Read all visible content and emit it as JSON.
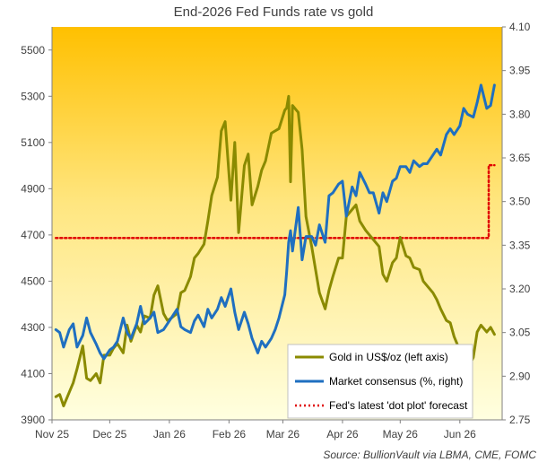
{
  "chart_data": {
    "type": "line",
    "title": "End-2026 Fed Funds rate vs gold",
    "source_prefix": "Source:",
    "source_text": "BullionVault via LBMA, CME, FOMC",
    "x_ticks": [
      "Nov 25",
      "Dec 25",
      "Jan 26",
      "Feb 26",
      "Mar 26",
      "Apr 26",
      "May 26",
      "Jun 26"
    ],
    "left_axis": {
      "ticks": [
        "3900",
        "4100",
        "4300",
        "4500",
        "4700",
        "4900",
        "5100",
        "5300",
        "5500"
      ],
      "ylim": [
        3900,
        5600
      ]
    },
    "right_axis": {
      "ticks": [
        "2.75",
        "2.90",
        "3.05",
        "3.20",
        "3.35",
        "3.50",
        "3.65",
        "3.80",
        "3.95",
        "4.10"
      ],
      "ylim": [
        2.75,
        4.1
      ]
    },
    "grid": false,
    "legend_position": "bottom-right",
    "colors": {
      "gold": "#8a8a00",
      "market": "#1f6fc0",
      "dotplot": "#e00000",
      "bg_top": "#ffc000",
      "bg_bottom": "#ffffe0"
    },
    "series": [
      {
        "name": "Gold in US$/oz (left axis)",
        "axis": "left",
        "x": [
          "2025-11-03",
          "2025-11-05",
          "2025-11-07",
          "2025-11-10",
          "2025-11-12",
          "2025-11-14",
          "2025-11-17",
          "2025-11-19",
          "2025-11-21",
          "2025-11-24",
          "2025-11-26",
          "2025-11-28",
          "2025-12-01",
          "2025-12-03",
          "2025-12-05",
          "2025-12-08",
          "2025-12-10",
          "2025-12-12",
          "2025-12-15",
          "2025-12-17",
          "2025-12-19",
          "2025-12-22",
          "2025-12-24",
          "2025-12-26",
          "2025-12-29",
          "2025-12-31",
          "2026-01-02",
          "2026-01-05",
          "2026-01-07",
          "2026-01-09",
          "2026-01-12",
          "2026-01-14",
          "2026-01-16",
          "2026-01-19",
          "2026-01-21",
          "2026-01-23",
          "2026-01-26",
          "2026-01-28",
          "2026-01-30",
          "2026-02-02",
          "2026-02-04",
          "2026-02-06",
          "2026-02-09",
          "2026-02-11",
          "2026-02-13",
          "2026-02-16",
          "2026-02-18",
          "2026-02-20",
          "2026-02-23",
          "2026-02-25",
          "2026-02-27",
          "2026-03-02",
          "2026-03-03",
          "2026-03-04",
          "2026-03-05",
          "2026-03-06",
          "2026-03-09",
          "2026-03-11",
          "2026-03-13",
          "2026-03-16",
          "2026-03-18",
          "2026-03-20",
          "2026-03-23",
          "2026-03-25",
          "2026-03-27",
          "2026-03-30",
          "2026-04-01",
          "2026-04-03",
          "2026-04-06",
          "2026-04-08",
          "2026-04-10",
          "2026-04-13",
          "2026-04-15",
          "2026-04-17",
          "2026-04-20",
          "2026-04-22",
          "2026-04-24",
          "2026-04-27",
          "2026-04-29",
          "2026-05-01",
          "2026-05-04",
          "2026-05-06",
          "2026-05-08",
          "2026-05-11",
          "2026-05-13",
          "2026-05-15",
          "2026-05-18",
          "2026-05-20",
          "2026-05-22",
          "2026-05-25",
          "2026-05-27",
          "2026-05-29",
          "2026-06-01",
          "2026-06-03",
          "2026-06-05",
          "2026-06-08",
          "2026-06-10",
          "2026-06-12",
          "2026-06-15",
          "2026-06-17",
          "2026-06-19"
        ],
        "values": [
          4000,
          4010,
          3960,
          4020,
          4060,
          4120,
          4220,
          4080,
          4070,
          4100,
          4060,
          4180,
          4180,
          4210,
          4230,
          4190,
          4310,
          4240,
          4310,
          4280,
          4350,
          4340,
          4440,
          4480,
          4360,
          4330,
          4340,
          4360,
          4450,
          4460,
          4520,
          4600,
          4620,
          4660,
          4760,
          4870,
          4950,
          5150,
          5190,
          4850,
          5100,
          4710,
          5000,
          5050,
          4830,
          4910,
          4980,
          5020,
          5140,
          5150,
          5160,
          5240,
          5250,
          5300,
          4930,
          5260,
          5230,
          5070,
          4780,
          4650,
          4550,
          4450,
          4380,
          4460,
          4520,
          4600,
          4600,
          4780,
          4810,
          4830,
          4760,
          4720,
          4700,
          4680,
          4650,
          4530,
          4500,
          4580,
          4600,
          4690,
          4610,
          4600,
          4560,
          4550,
          4500,
          4480,
          4450,
          4420,
          4380,
          4330,
          4320,
          4260,
          4200,
          4060,
          4120,
          4170,
          4280,
          4310,
          4280,
          4300,
          4270
        ]
      },
      {
        "name": "Market consensus (%, right)",
        "axis": "right",
        "x": [
          "2025-11-03",
          "2025-11-05",
          "2025-11-07",
          "2025-11-10",
          "2025-11-12",
          "2025-11-14",
          "2025-11-17",
          "2025-11-19",
          "2025-11-21",
          "2025-11-24",
          "2025-11-26",
          "2025-11-28",
          "2025-12-01",
          "2025-12-03",
          "2025-12-05",
          "2025-12-08",
          "2025-12-10",
          "2025-12-12",
          "2025-12-15",
          "2025-12-17",
          "2025-12-19",
          "2025-12-22",
          "2025-12-24",
          "2025-12-26",
          "2025-12-29",
          "2025-12-31",
          "2026-01-02",
          "2026-01-05",
          "2026-01-07",
          "2026-01-09",
          "2026-01-12",
          "2026-01-14",
          "2026-01-16",
          "2026-01-19",
          "2026-01-21",
          "2026-01-23",
          "2026-01-26",
          "2026-01-28",
          "2026-01-30",
          "2026-02-02",
          "2026-02-04",
          "2026-02-06",
          "2026-02-09",
          "2026-02-11",
          "2026-02-13",
          "2026-02-16",
          "2026-02-18",
          "2026-02-20",
          "2026-02-23",
          "2026-02-25",
          "2026-02-27",
          "2026-03-02",
          "2026-03-03",
          "2026-03-04",
          "2026-03-05",
          "2026-03-06",
          "2026-03-09",
          "2026-03-11",
          "2026-03-13",
          "2026-03-16",
          "2026-03-18",
          "2026-03-20",
          "2026-03-23",
          "2026-03-25",
          "2026-03-27",
          "2026-03-30",
          "2026-04-01",
          "2026-04-03",
          "2026-04-06",
          "2026-04-08",
          "2026-04-10",
          "2026-04-13",
          "2026-04-15",
          "2026-04-17",
          "2026-04-20",
          "2026-04-22",
          "2026-04-24",
          "2026-04-27",
          "2026-04-29",
          "2026-05-01",
          "2026-05-04",
          "2026-05-06",
          "2026-05-08",
          "2026-05-11",
          "2026-05-13",
          "2026-05-15",
          "2026-05-18",
          "2026-05-20",
          "2026-05-22",
          "2026-05-25",
          "2026-05-27",
          "2026-05-29",
          "2026-06-01",
          "2026-06-03",
          "2026-06-05",
          "2026-06-08",
          "2026-06-10",
          "2026-06-12",
          "2026-06-15",
          "2026-06-17",
          "2026-06-19"
        ],
        "values": [
          3.06,
          3.05,
          3.0,
          3.06,
          3.08,
          3.0,
          3.04,
          3.1,
          3.05,
          3.01,
          2.98,
          2.96,
          2.99,
          3.0,
          3.02,
          3.1,
          3.05,
          3.03,
          3.08,
          3.14,
          3.08,
          3.1,
          3.12,
          3.05,
          3.06,
          3.08,
          3.1,
          3.13,
          3.07,
          3.06,
          3.05,
          3.09,
          3.11,
          3.07,
          3.13,
          3.1,
          3.13,
          3.17,
          3.14,
          3.2,
          3.12,
          3.06,
          3.12,
          3.08,
          3.03,
          2.98,
          3.02,
          3.0,
          3.03,
          3.06,
          3.1,
          3.18,
          3.26,
          3.36,
          3.4,
          3.33,
          3.48,
          3.3,
          3.38,
          3.38,
          3.35,
          3.42,
          3.36,
          3.52,
          3.53,
          3.56,
          3.57,
          3.45,
          3.55,
          3.52,
          3.6,
          3.56,
          3.53,
          3.53,
          3.46,
          3.53,
          3.5,
          3.57,
          3.58,
          3.62,
          3.62,
          3.6,
          3.64,
          3.62,
          3.63,
          3.63,
          3.66,
          3.68,
          3.66,
          3.73,
          3.75,
          3.73,
          3.76,
          3.82,
          3.8,
          3.79,
          3.84,
          3.9,
          3.82,
          3.83,
          3.9
        ]
      },
      {
        "name": "Fed's latest 'dot plot' forecast",
        "axis": "right",
        "style": "dotted",
        "x": [
          "2025-11-03",
          "2026-06-16",
          "2026-06-16",
          "2026-06-19"
        ],
        "values": [
          3.375,
          3.375,
          3.625,
          3.625
        ]
      }
    ]
  }
}
